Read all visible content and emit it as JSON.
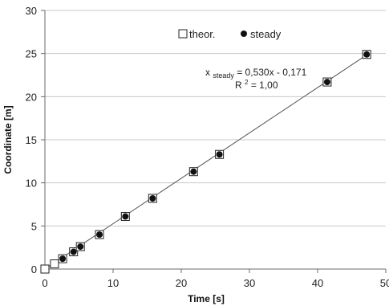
{
  "chart_data": {
    "type": "scatter",
    "title": "",
    "xlabel": "Time [s]",
    "ylabel": "Coordinate [m]",
    "xlim": [
      0,
      50
    ],
    "ylim": [
      0,
      30
    ],
    "xticks": [
      "0",
      "10",
      "20",
      "30",
      "40",
      "50"
    ],
    "yticks": [
      "0",
      "5",
      "10",
      "15",
      "20",
      "25",
      "30"
    ],
    "grid": "horizontal",
    "legend_position": "top-center",
    "series": [
      {
        "name": "theor.",
        "marker": "open-square",
        "x": [
          0,
          1.4,
          2.6,
          4.2,
          5.2,
          8.0,
          11.8,
          15.8,
          21.8,
          25.6,
          41.4,
          47.2
        ],
        "y": [
          0,
          0.6,
          1.2,
          2.0,
          2.6,
          4.0,
          6.1,
          8.2,
          11.3,
          13.3,
          21.7,
          24.9
        ]
      },
      {
        "name": "steady",
        "marker": "filled-circle",
        "x": [
          2.6,
          4.2,
          5.2,
          8.0,
          11.8,
          15.8,
          21.8,
          25.6,
          41.4,
          47.2
        ],
        "y": [
          1.2,
          2.0,
          2.6,
          4.0,
          6.1,
          8.2,
          11.3,
          13.3,
          21.7,
          24.9
        ]
      }
    ],
    "trendline": {
      "slope": 0.53,
      "intercept": -0.171,
      "x_range": [
        0,
        47.2
      ],
      "label_var": "x",
      "label_sub": "steady",
      "label_rest": " = 0,530x - 0,171",
      "r2_base": "R",
      "r2_sup": "2",
      "r2_rest": " = 1,00"
    }
  }
}
